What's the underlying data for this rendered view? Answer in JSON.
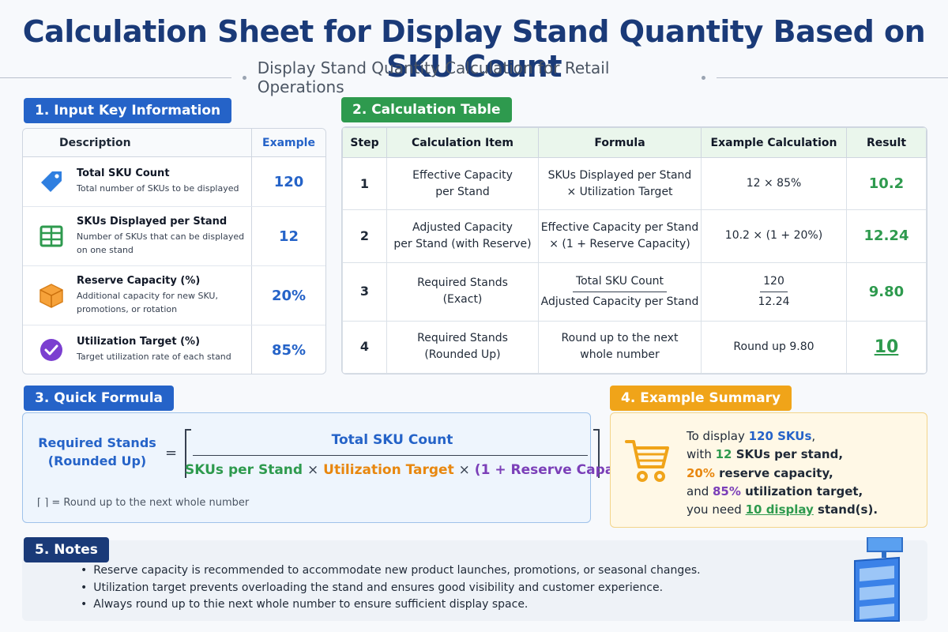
{
  "header": {
    "title": "Calculation Sheet for Display Stand Quantity Based on SKU Count",
    "subtitle": "Display Stand Quantity Calculation for Retail Operations"
  },
  "colors": {
    "blue": "#2563c8",
    "green": "#2e9a4e",
    "orange": "#f0a419",
    "navy": "#1a3a78",
    "purple": "#7b3fb8"
  },
  "section1": {
    "tag": "1. Input Key Information",
    "col_description": "Description",
    "col_example": "Example",
    "rows": [
      {
        "icon": "tag-icon",
        "name": "Total SKU Count",
        "desc": "Total number of SKUs to be displayed",
        "value": "120"
      },
      {
        "icon": "grid-icon",
        "name": "SKUs Displayed per Stand",
        "desc": "Number of SKUs that can be displayed on one stand",
        "value": "12"
      },
      {
        "icon": "box-icon",
        "name": "Reserve Capacity (%)",
        "desc": "Additional capacity for new SKU, promotions, or rotation",
        "value": "20%"
      },
      {
        "icon": "check-circle-icon",
        "name": "Utilization Target (%)",
        "desc": "Target utilization rate of each stand",
        "value": "85%"
      }
    ]
  },
  "section2": {
    "tag": "2. Calculation Table",
    "headers": [
      "Step",
      "Calculation Item",
      "Formula",
      "Example Calculation",
      "Result"
    ],
    "rows": [
      {
        "step": "1",
        "item_line1": "Effective Capacity",
        "item_line2": "per Stand",
        "formula_line1": "SKUs Displayed per Stand",
        "formula_line2": "× Utilization Target",
        "example": "12 × 85%",
        "result": "10.2"
      },
      {
        "step": "2",
        "item_line1": "Adjusted Capacity",
        "item_line2": "per Stand (with Reserve)",
        "formula_line1": "Effective Capacity per Stand",
        "formula_line2": "× (1 + Reserve Capacity)",
        "example": "10.2 × (1 + 20%)",
        "result": "12.24"
      },
      {
        "step": "3",
        "item_line1": "Required Stands",
        "item_line2": "(Exact)",
        "formula_num": "Total SKU Count",
        "formula_den": "Adjusted Capacity per Stand",
        "example_num": "120",
        "example_den": "12.24",
        "result": "9.80"
      },
      {
        "step": "4",
        "item_line1": "Required Stands",
        "item_line2": "(Rounded Up)",
        "formula_line1": "Round up to the next",
        "formula_line2": "whole number",
        "example": "Round up 9.80",
        "result": "10"
      }
    ]
  },
  "section3": {
    "tag": "3. Quick Formula",
    "left_line1": "Required Stands",
    "left_line2": "(Rounded Up)",
    "equals": "=",
    "numerator": "Total SKU Count",
    "den_part1": "SKUs per Stand",
    "times1": "×",
    "den_part2": "Utilization Target",
    "times2": "×",
    "den_open": "(1 +",
    "den_part3": "Reserve Capacity",
    "den_close": ")",
    "note": "⌈  ⌉ = Round up to the next whole number"
  },
  "section4": {
    "tag": "4. Example Summary",
    "l1_a": "To display ",
    "l1_b": "120 SKUs",
    "l1_c": ",",
    "l2_a": "with ",
    "l2_b": "12",
    "l2_c": " SKUs per stand,",
    "l3_a": "20%",
    "l3_b": " reserve capacity,",
    "l4_a": "and ",
    "l4_b": "85%",
    "l4_c": " utilization target,",
    "l5_a": "you need ",
    "l5_b": "10 display",
    "l5_c": " stand(s)."
  },
  "section5": {
    "tag": "5. Notes",
    "notes": [
      "Reserve capacity is recommended to accommodate new product launches, promotions, or seasonal changes.",
      "Utilization target prevents overloading the stand and ensures good visibility and customer experience.",
      "Always round up to thie next whole number to ensure sufficient display space."
    ]
  }
}
